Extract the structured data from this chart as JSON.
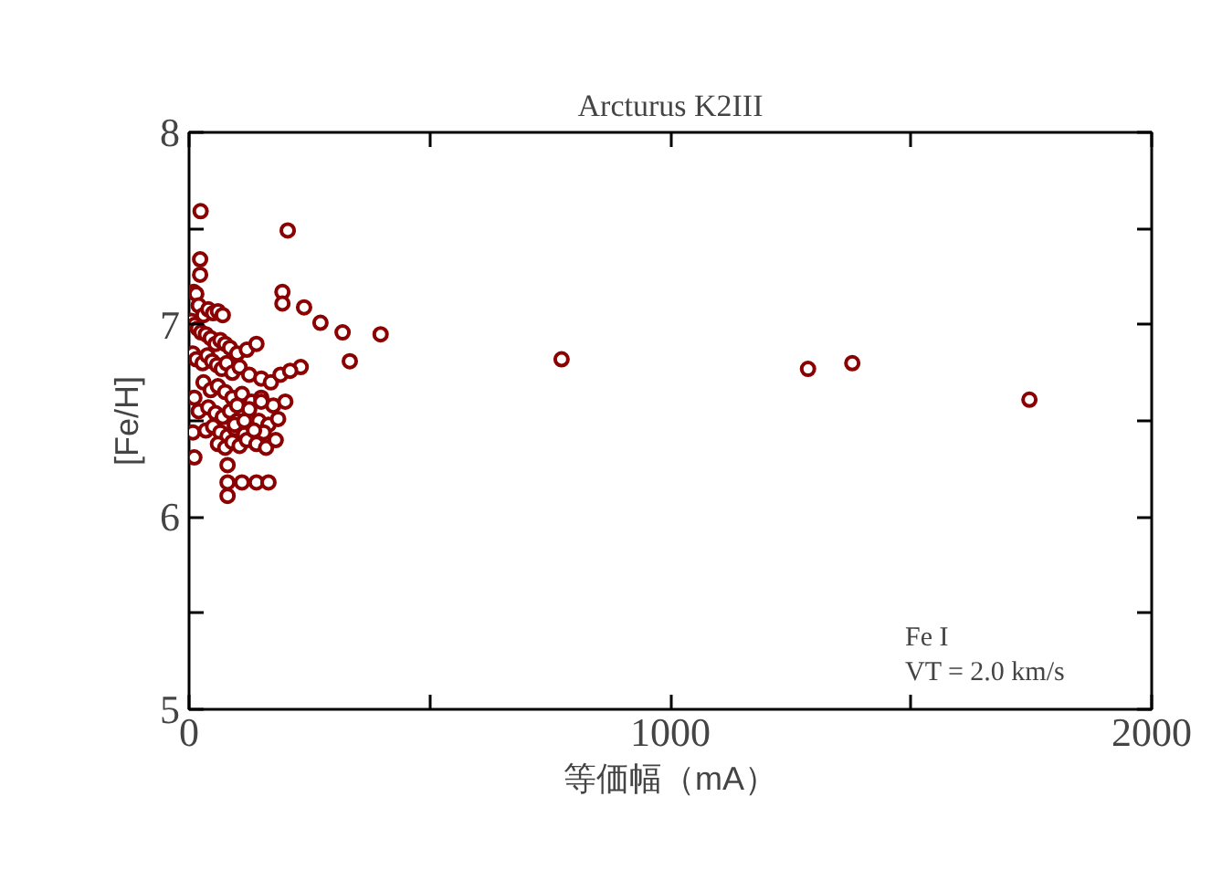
{
  "chart_data": {
    "type": "scatter",
    "title": "Arcturus K2III",
    "xlabel": "等価幅（mA）",
    "ylabel": "[Fe/H]",
    "annotations": [
      "Fe I",
      "VT = 2.0 km/s"
    ],
    "xlim": [
      0,
      2000
    ],
    "ylim": [
      5,
      8
    ],
    "xticks": [
      0,
      {
        "value": 500,
        "label": null
      },
      1000,
      {
        "value": 1500,
        "label": null
      },
      2000
    ],
    "yticks": [
      5,
      {
        "value": 5.5,
        "label": null
      },
      6,
      {
        "value": 6.5,
        "label": null
      },
      7,
      {
        "value": 7.5,
        "label": null
      },
      8
    ],
    "grid": false,
    "marker": "circle",
    "series": [
      {
        "color": "#8b0000",
        "x": [
          24,
          205,
          194,
          194,
          239,
          273,
          319,
          398,
          334,
          232,
          774,
          1286,
          1378,
          1746,
          80,
          80,
          110,
          140,
          165,
          80,
          11,
          8,
          11,
          23,
          23,
          10,
          15,
          20,
          30,
          40,
          50,
          60,
          70,
          5,
          12,
          18,
          25,
          35,
          45,
          55,
          65,
          75,
          85,
          100,
          120,
          140,
          8,
          15,
          28,
          38,
          48,
          58,
          68,
          78,
          90,
          105,
          125,
          150,
          170,
          190,
          210,
          30,
          45,
          60,
          75,
          90,
          110,
          130,
          150,
          175,
          200,
          20,
          40,
          55,
          70,
          85,
          100,
          145,
          165,
          185,
          35,
          50,
          65,
          80,
          95,
          115,
          155,
          60,
          75,
          90,
          105,
          120,
          140,
          160,
          180,
          100,
          125,
          150,
          95,
          115,
          135
        ],
        "values": [
          7.59,
          7.49,
          7.17,
          7.11,
          7.09,
          7.01,
          6.96,
          6.95,
          6.81,
          6.78,
          6.82,
          6.77,
          6.8,
          6.61,
          6.11,
          6.18,
          6.18,
          6.18,
          6.18,
          6.27,
          6.31,
          6.44,
          6.62,
          7.34,
          7.26,
          7.17,
          7.16,
          7.1,
          7.05,
          7.08,
          7.06,
          7.07,
          7.05,
          7.02,
          7.0,
          6.98,
          6.96,
          6.95,
          6.93,
          6.9,
          6.92,
          6.9,
          6.88,
          6.85,
          6.87,
          6.9,
          6.85,
          6.82,
          6.8,
          6.84,
          6.81,
          6.79,
          6.77,
          6.8,
          6.75,
          6.78,
          6.74,
          6.72,
          6.7,
          6.74,
          6.76,
          6.7,
          6.66,
          6.68,
          6.65,
          6.62,
          6.64,
          6.6,
          6.62,
          6.58,
          6.6,
          6.55,
          6.57,
          6.54,
          6.52,
          6.55,
          6.5,
          6.5,
          6.48,
          6.51,
          6.45,
          6.47,
          6.44,
          6.42,
          6.46,
          6.43,
          6.44,
          6.38,
          6.36,
          6.39,
          6.37,
          6.4,
          6.38,
          6.36,
          6.4,
          6.58,
          6.56,
          6.6,
          6.48,
          6.5,
          6.45
        ]
      }
    ]
  }
}
